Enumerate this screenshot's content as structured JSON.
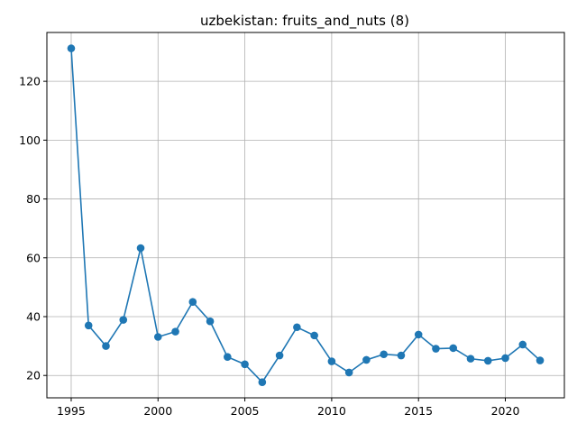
{
  "chart_data": {
    "type": "line",
    "title": "uzbekistan: fruits_and_nuts (8)",
    "xlabel": "",
    "ylabel": "",
    "xlim": [
      1993.6,
      2023.4
    ],
    "ylim": [
      12.4,
      136.6
    ],
    "x_ticks": [
      1995,
      2000,
      2005,
      2010,
      2015,
      2020
    ],
    "y_ticks": [
      20,
      40,
      60,
      80,
      100,
      120
    ],
    "grid": true,
    "color": "#1f77b4",
    "series": [
      {
        "x": [
          1995,
          1996,
          1997,
          1998,
          1999,
          2000,
          2001,
          2002,
          2003,
          2004,
          2005,
          2006,
          2007,
          2008,
          2009,
          2010,
          2011,
          2012,
          2013,
          2014,
          2015,
          2016,
          2017,
          2018,
          2019,
          2020,
          2021,
          2022
        ],
        "y": [
          131.2,
          37.0,
          30.0,
          38.9,
          63.3,
          33.1,
          34.9,
          45.0,
          38.4,
          26.3,
          23.8,
          17.7,
          26.8,
          36.4,
          33.6,
          24.8,
          21.0,
          25.3,
          27.2,
          26.8,
          33.9,
          29.1,
          29.3,
          25.7,
          25.0,
          25.9,
          30.5,
          25.1
        ]
      }
    ]
  }
}
